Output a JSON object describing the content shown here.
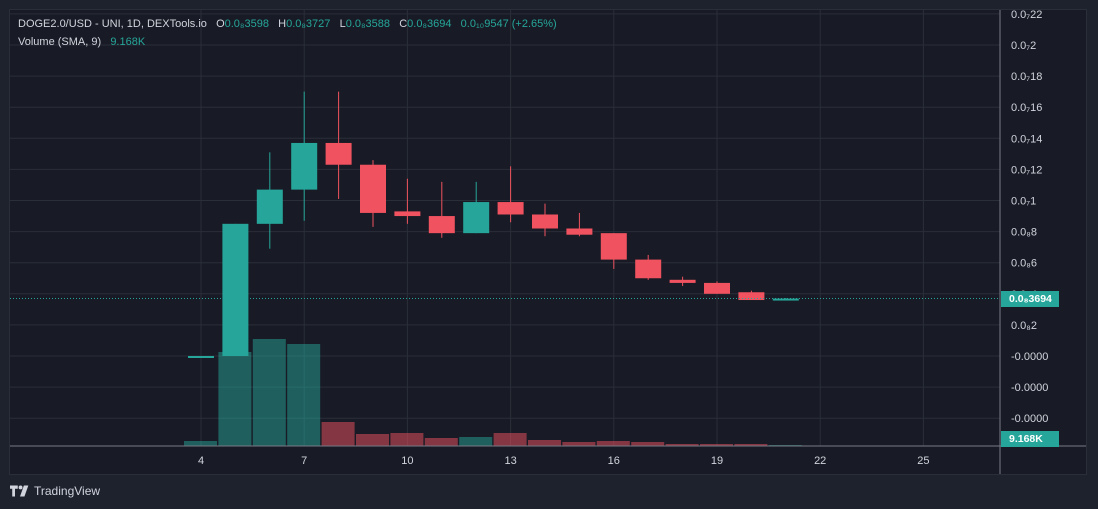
{
  "legend": {
    "symbol": "DOGE2.0/USD - UNI, 1D, DEXTools.io",
    "open_label": "O",
    "open_value": "0.0₈3598",
    "high_label": "H",
    "high_value": "0.0₈3727",
    "low_label": "L",
    "low_value": "0.0₈3588",
    "close_label": "C",
    "close_value": "0.0₈3694",
    "change_value": "0.0₁₀9547 (+2.65%)",
    "volume_label": "Volume (SMA, 9)",
    "volume_value": "9.168K"
  },
  "price_tag": "0.0₈3694",
  "volume_tag": "9.168K",
  "footer": {
    "brand": "TradingView"
  },
  "colors": {
    "up": "#26a69a",
    "down": "#f0525f",
    "background": "#181b25",
    "grid": "#2a2e39"
  },
  "chart_data": {
    "type": "candlestick",
    "x_tick_labels": [
      "4",
      "7",
      "10",
      "13",
      "16",
      "19",
      "22",
      "25"
    ],
    "y_tick_labels": [
      "0.0₇22",
      "0.0₇2",
      "0.0₇18",
      "0.0₇16",
      "0.0₇14",
      "0.0₇12",
      "0.0₇1",
      "0.0₈8",
      "0.0₈6",
      "0.0₈4",
      "0.0₈2",
      "-0.0000",
      "-0.0000",
      "-0.0000"
    ],
    "y_ticks": [
      22,
      20,
      18,
      16,
      14,
      12,
      10,
      8,
      6,
      4,
      2,
      0,
      -2,
      -4
    ],
    "y_units": "1e-9 USD",
    "last_price": 3.694,
    "candles": [
      {
        "day": 4,
        "o": 0.0,
        "h": 0.0,
        "l": 0.0,
        "c": 0.0
      },
      {
        "day": 5,
        "o": 0.0,
        "h": 8.5,
        "l": 0.0,
        "c": 8.5
      },
      {
        "day": 6,
        "o": 8.5,
        "h": 13.1,
        "l": 6.9,
        "c": 10.7
      },
      {
        "day": 7,
        "o": 10.7,
        "h": 17.0,
        "l": 8.7,
        "c": 13.7
      },
      {
        "day": 8,
        "o": 13.7,
        "h": 17.0,
        "l": 10.1,
        "c": 12.3
      },
      {
        "day": 9,
        "o": 12.3,
        "h": 12.6,
        "l": 8.3,
        "c": 9.2
      },
      {
        "day": 10,
        "o": 9.3,
        "h": 11.4,
        "l": 8.5,
        "c": 9.0
      },
      {
        "day": 11,
        "o": 9.0,
        "h": 11.2,
        "l": 7.6,
        "c": 7.9
      },
      {
        "day": 12,
        "o": 7.9,
        "h": 11.2,
        "l": 7.9,
        "c": 9.9
      },
      {
        "day": 13,
        "o": 9.9,
        "h": 12.2,
        "l": 8.6,
        "c": 9.1
      },
      {
        "day": 14,
        "o": 9.1,
        "h": 9.8,
        "l": 7.7,
        "c": 8.2
      },
      {
        "day": 15,
        "o": 8.2,
        "h": 9.2,
        "l": 7.7,
        "c": 7.8
      },
      {
        "day": 16,
        "o": 7.9,
        "h": 7.9,
        "l": 5.6,
        "c": 6.2
      },
      {
        "day": 17,
        "o": 6.2,
        "h": 6.5,
        "l": 4.9,
        "c": 5.0
      },
      {
        "day": 18,
        "o": 4.9,
        "h": 5.1,
        "l": 4.5,
        "c": 4.7
      },
      {
        "day": 19,
        "o": 4.7,
        "h": 4.8,
        "l": 4.0,
        "c": 4.0
      },
      {
        "day": 20,
        "o": 4.1,
        "h": 4.2,
        "l": 3.6,
        "c": 3.6
      },
      {
        "day": 21,
        "o": 3.598,
        "h": 3.727,
        "l": 3.588,
        "c": 3.694
      }
    ],
    "volume_k": [
      5.0,
      94.0,
      107.0,
      102.0,
      24.0,
      12.0,
      13.0,
      8.0,
      9.0,
      13.0,
      6.0,
      4.0,
      5.0,
      4.0,
      2.0,
      2.0,
      2.0,
      0.5
    ]
  }
}
